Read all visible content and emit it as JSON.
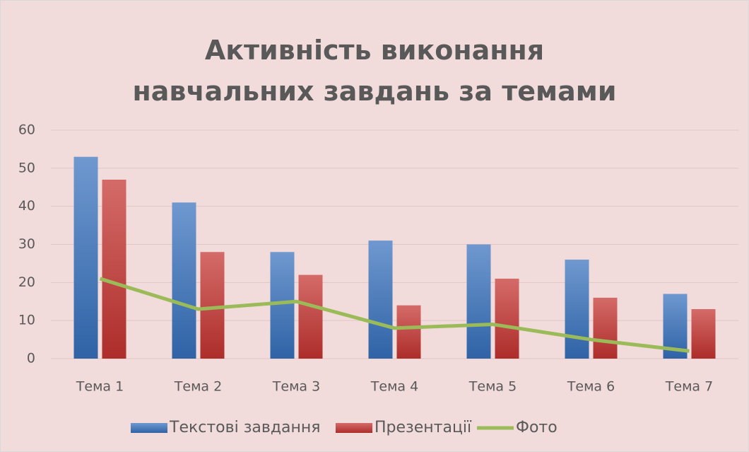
{
  "chart_data": {
    "type": "bar",
    "title": "Активність виконання навчальних завдань за темами",
    "categories": [
      "Тема 1",
      "Тема 2",
      "Тема 3",
      "Тема 4",
      "Тема 5",
      "Тема 6",
      "Тема 7"
    ],
    "series": [
      {
        "name": "Текстові завдання",
        "color": "#4f81bd",
        "type": "bar",
        "values": [
          53,
          41,
          28,
          31,
          30,
          26,
          17
        ]
      },
      {
        "name": "Презентації",
        "color": "#c0504d",
        "type": "bar",
        "values": [
          47,
          28,
          22,
          14,
          21,
          16,
          13
        ]
      },
      {
        "name": "Фото",
        "color": "#9bbb59",
        "type": "line",
        "values": [
          21,
          13,
          15,
          8,
          9,
          5,
          2
        ]
      }
    ],
    "ylim": [
      0,
      60
    ],
    "yticks": [
      0,
      10,
      20,
      30,
      40,
      50,
      60
    ],
    "grid": true,
    "legend": "bottom"
  }
}
